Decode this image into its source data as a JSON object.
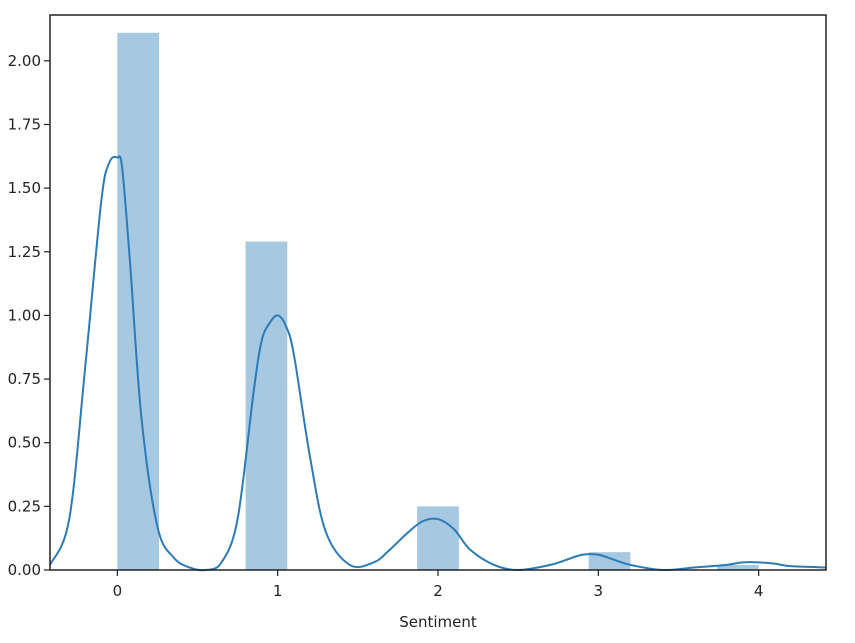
{
  "chart_data": {
    "type": "bar",
    "subtype": "histogram-with-kde",
    "xlabel": "Sentiment",
    "ylabel": "",
    "title": "",
    "xlim": [
      -0.42,
      4.42
    ],
    "ylim": [
      0,
      2.18
    ],
    "x_ticks": [
      {
        "value": 0,
        "label": "0"
      },
      {
        "value": 1,
        "label": "1"
      },
      {
        "value": 2,
        "label": "2"
      },
      {
        "value": 3,
        "label": "3"
      },
      {
        "value": 4,
        "label": "4"
      }
    ],
    "y_ticks": [
      {
        "value": 0.0,
        "label": "0.00"
      },
      {
        "value": 0.25,
        "label": "0.25"
      },
      {
        "value": 0.5,
        "label": "0.50"
      },
      {
        "value": 0.75,
        "label": "0.75"
      },
      {
        "value": 1.0,
        "label": "1.00"
      },
      {
        "value": 1.25,
        "label": "1.25"
      },
      {
        "value": 1.5,
        "label": "1.50"
      },
      {
        "value": 1.75,
        "label": "1.75"
      },
      {
        "value": 2.0,
        "label": "2.00"
      }
    ],
    "bars": [
      {
        "x0": 0.0,
        "x1": 0.26,
        "value": 2.11
      },
      {
        "x0": 0.8,
        "x1": 1.06,
        "value": 1.29
      },
      {
        "x0": 1.87,
        "x1": 2.13,
        "value": 0.25
      },
      {
        "x0": 2.94,
        "x1": 3.2,
        "value": 0.07
      },
      {
        "x0": 3.74,
        "x1": 4.0,
        "value": 0.02
      }
    ],
    "kde": {
      "x": [
        -0.42,
        -0.3,
        -0.2,
        -0.1,
        -0.05,
        0.0,
        0.03,
        0.08,
        0.15,
        0.25,
        0.35,
        0.45,
        0.55,
        0.65,
        0.75,
        0.85,
        0.9,
        0.95,
        1.0,
        1.05,
        1.1,
        1.2,
        1.3,
        1.45,
        1.6,
        1.7,
        1.8,
        1.9,
        2.0,
        2.1,
        2.2,
        2.35,
        2.5,
        2.7,
        2.8,
        2.9,
        3.0,
        3.1,
        3.2,
        3.4,
        3.6,
        3.8,
        3.9,
        4.0,
        4.1,
        4.2,
        4.42
      ],
      "y": [
        0.02,
        0.2,
        0.8,
        1.45,
        1.6,
        1.62,
        1.58,
        1.2,
        0.6,
        0.17,
        0.05,
        0.01,
        0.0,
        0.03,
        0.2,
        0.7,
        0.9,
        0.97,
        1.0,
        0.96,
        0.85,
        0.45,
        0.15,
        0.02,
        0.03,
        0.08,
        0.14,
        0.19,
        0.2,
        0.16,
        0.08,
        0.02,
        0.0,
        0.02,
        0.04,
        0.06,
        0.06,
        0.04,
        0.02,
        0.0,
        0.01,
        0.02,
        0.03,
        0.03,
        0.025,
        0.015,
        0.01
      ]
    },
    "colors": {
      "bar_fill": "#a6c8e1",
      "kde_line": "#2c7bb6",
      "axis": "#222222"
    },
    "grid": false,
    "legend": "none"
  }
}
